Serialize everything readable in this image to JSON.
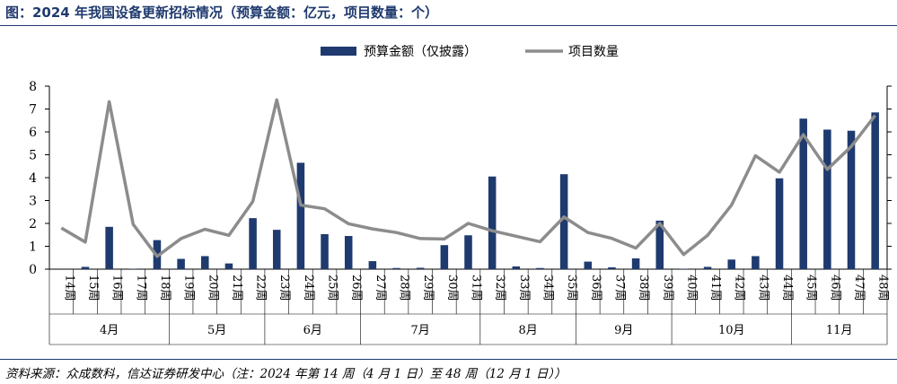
{
  "title": "图：2024 年我国设备更新招标情况（预算金额：亿元，项目数量：个）",
  "source": "资料来源：众成数科，信达证券研发中心（注：2024 年第 14 周（4 月 1 日）至 48 周（12 月 1 日））",
  "colors": {
    "bar": "#1f3a6e",
    "line": "#8c8c8c",
    "title": "#1f3a6e"
  },
  "chart_data": {
    "type": "bar+line",
    "categories": [
      "14周",
      "15周",
      "16周",
      "17周",
      "18周",
      "19周",
      "20周",
      "21周",
      "22周",
      "23周",
      "24周",
      "25周",
      "26周",
      "27周",
      "28周",
      "29周",
      "30周",
      "31周",
      "32周",
      "33周",
      "34周",
      "35周",
      "36周",
      "37周",
      "38周",
      "39周",
      "40周",
      "41周",
      "42周",
      "43周",
      "44周",
      "45周",
      "46周",
      "47周",
      "48周"
    ],
    "months": [
      {
        "label": "4月",
        "count": 5
      },
      {
        "label": "5月",
        "count": 4
      },
      {
        "label": "6月",
        "count": 4
      },
      {
        "label": "7月",
        "count": 5
      },
      {
        "label": "8月",
        "count": 4
      },
      {
        "label": "9月",
        "count": 4
      },
      {
        "label": "10月",
        "count": 5
      },
      {
        "label": "11月",
        "count": 4
      }
    ],
    "series": [
      {
        "name": "预算金额（仅披露）",
        "type": "bar",
        "axis": "left",
        "values": [
          0,
          0.1,
          1.85,
          0.02,
          1.27,
          0.45,
          0.57,
          0.25,
          2.23,
          1.72,
          4.65,
          1.53,
          1.45,
          0.35,
          0.05,
          0.06,
          1.05,
          1.48,
          4.05,
          0.12,
          0.05,
          4.15,
          0.33,
          0.08,
          0.47,
          2.12,
          0.02,
          0.1,
          0.42,
          0.57,
          3.97,
          6.58,
          6.1,
          6.05,
          6.85
        ]
      },
      {
        "name": "项目数量",
        "type": "line",
        "axis": "right",
        "values": [
          0.225,
          0.148,
          0.915,
          0.245,
          0.07,
          0.167,
          0.218,
          0.185,
          0.37,
          0.925,
          0.35,
          0.33,
          0.248,
          0.22,
          0.2,
          0.167,
          0.165,
          0.25,
          0.21,
          0.18,
          0.15,
          0.285,
          0.2,
          0.168,
          0.115,
          0.25,
          0.08,
          0.185,
          0.35,
          0.62,
          0.53,
          0.735,
          0.545,
          0.67,
          0.84
        ]
      }
    ],
    "left_axis": {
      "ticks": [
        "0",
        "1",
        "2",
        "3",
        "4",
        "5",
        "6",
        "7",
        "8"
      ],
      "ylim": [
        0,
        8
      ]
    },
    "right_axis": {
      "ylim": [
        0,
        1
      ],
      "tick_count": 8
    },
    "legend_placement": "top-center"
  }
}
